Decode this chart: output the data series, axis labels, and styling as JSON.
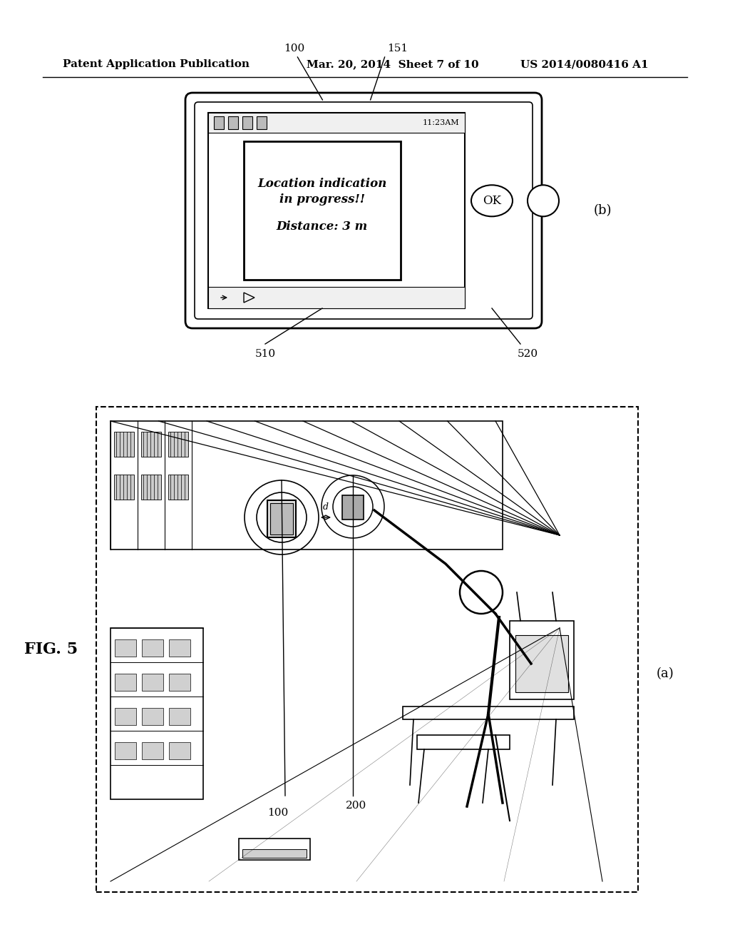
{
  "bg_color": "#ffffff",
  "header_left": "Patent Application Publication",
  "header_mid": "Mar. 20, 2014  Sheet 7 of 10",
  "header_right": "US 2014/0080416 A1",
  "fig_label": "FIG. 5",
  "label_a": "(a)",
  "label_b": "(b)",
  "ref_100_top": "100",
  "ref_151": "151",
  "ref_510": "510",
  "ref_520": "520",
  "ref_100_bot": "100",
  "ref_200": "200",
  "popup_line1": "Location indication",
  "popup_line2": "in progress!!",
  "popup_line3": "Distance: 3 m",
  "ok_label": "OK",
  "time_label": "11:23AM"
}
